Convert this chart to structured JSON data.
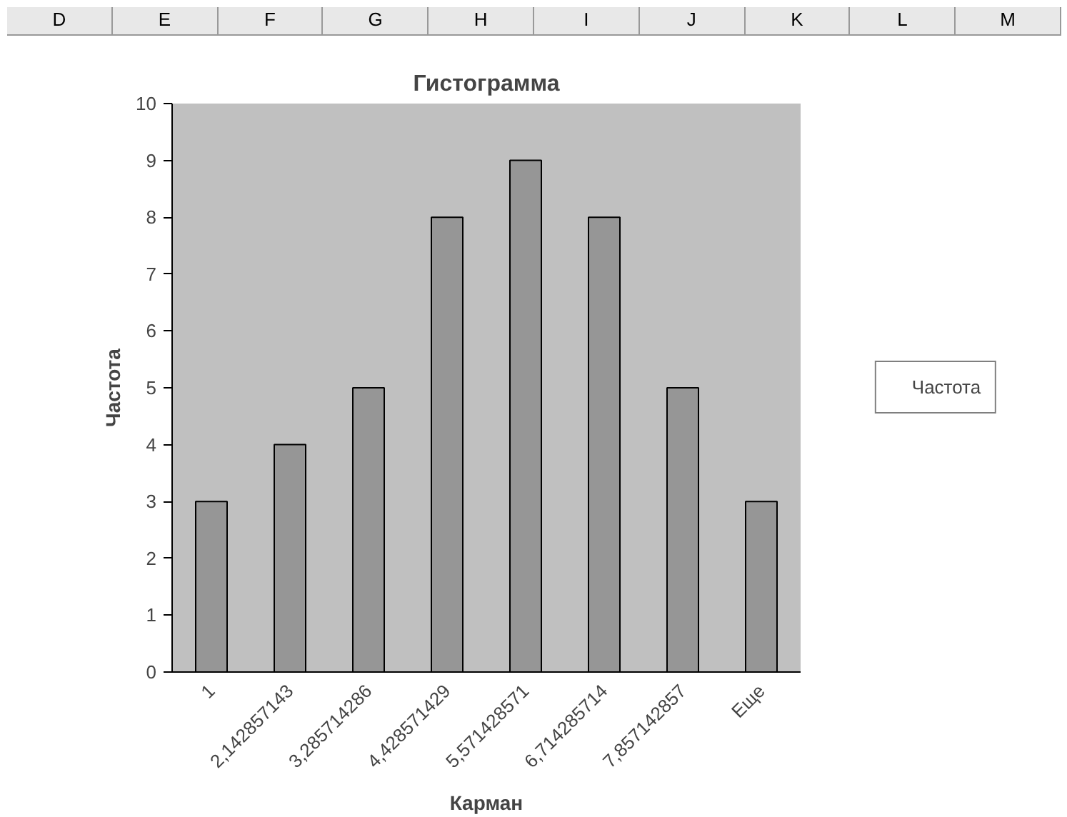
{
  "chart_data": {
    "type": "bar",
    "title": "Гистограмма",
    "xlabel": "Карман",
    "ylabel": "Частота",
    "categories": [
      "1",
      "2,142857143",
      "3,285714286",
      "4,428571429",
      "5,571428571",
      "6,714285714",
      "7,857142857",
      "Еще"
    ],
    "series": [
      {
        "name": "Частота",
        "color": "#969696",
        "values": [
          3,
          4,
          5,
          8,
          9,
          8,
          5,
          3
        ]
      }
    ],
    "ylim": [
      0,
      10
    ],
    "yticks": [
      0,
      1,
      2,
      3,
      4,
      5,
      6,
      7,
      8,
      9,
      10
    ],
    "grid": false,
    "legend": "right",
    "annotations": [
      "D",
      "E",
      "F",
      "G",
      "H",
      "I",
      "J",
      "K",
      "L",
      "M"
    ]
  }
}
